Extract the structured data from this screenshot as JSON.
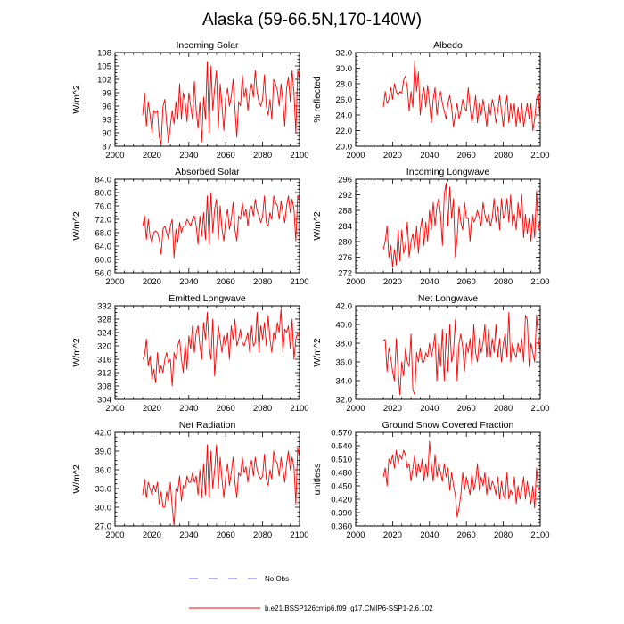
{
  "figure": {
    "title": "Alaska (59-66.5N,170-140W)",
    "line_color": "#ff0000",
    "obs_color": "#7b68ee"
  },
  "legend": {
    "obs_label": "No Obs",
    "model_label": "b.e21.BSSP126cmip6.f09_g17.CMIP6-SSP1-2.6.102"
  },
  "chart_data": [
    {
      "type": "line",
      "title": "Incoming Solar",
      "xlabel": "",
      "ylabel": "W/m^2",
      "xlim": [
        2000,
        2100
      ],
      "ylim": [
        87,
        108
      ],
      "xticks": [
        2000,
        2020,
        2040,
        2060,
        2080,
        2100
      ],
      "yticks": [
        87,
        90,
        93,
        96,
        99,
        102,
        105,
        108
      ],
      "ytick_labels": [
        "87",
        "90",
        "93",
        "96",
        "99",
        "102",
        "105",
        "108"
      ],
      "x_start": 2015,
      "series": [
        {
          "name": "b.e21.BSSP126cmip6.f09_g17.CMIP6-SSP1-2.6.102",
          "values": [
            94,
            99,
            91.5,
            97,
            94,
            90,
            95,
            94.5,
            95,
            89,
            87.5,
            96,
            97.5,
            92,
            87.8,
            91.5,
            95,
            92,
            97,
            93,
            101,
            93,
            99,
            97,
            92.5,
            99,
            96,
            93,
            101.5,
            95,
            91,
            97,
            88,
            98,
            93,
            106,
            90,
            105,
            95,
            100,
            104,
            91,
            101,
            96,
            90.5,
            98,
            100,
            96,
            98,
            102,
            95.5,
            89,
            97,
            96,
            103,
            98,
            100,
            95,
            99,
            101,
            98,
            104,
            99,
            97,
            96,
            97.5,
            103,
            96,
            94,
            97.5,
            93,
            102,
            101,
            99.5,
            96,
            101,
            97,
            91.5,
            100,
            102.5,
            97,
            104,
            99,
            90,
            104,
            102
          ]
        }
      ]
    },
    {
      "type": "line",
      "title": "Albedo",
      "xlabel": "",
      "ylabel": "% reflected",
      "xlim": [
        2000,
        2100
      ],
      "ylim": [
        20,
        32
      ],
      "xticks": [
        2000,
        2020,
        2040,
        2060,
        2080,
        2100
      ],
      "yticks": [
        20,
        22,
        24,
        26,
        28,
        30,
        32
      ],
      "ytick_labels": [
        "20.0",
        "22.0",
        "24.0",
        "26.0",
        "28.0",
        "30.0",
        "32.0"
      ],
      "x_start": 2015,
      "series": [
        {
          "name": "b.e21.BSSP126cmip6.f09_g17.CMIP6-SSP1-2.6.102",
          "values": [
            25,
            27,
            25.5,
            26,
            27.5,
            26,
            28,
            27,
            26.5,
            27,
            26.8,
            28.5,
            29,
            27.5,
            24.5,
            27,
            25,
            31,
            27,
            29.5,
            24,
            26.5,
            27.5,
            25,
            27.8,
            25.5,
            23,
            26,
            27.5,
            24,
            26,
            27,
            25.5,
            24.5,
            23.5,
            25.5,
            26.5,
            25,
            22.5,
            24,
            25.5,
            23.5,
            24.5,
            26,
            25,
            24.5,
            27.5,
            25,
            23,
            24.5,
            26.5,
            23,
            25.5,
            24,
            26,
            24.5,
            22.5,
            25.5,
            24,
            26,
            25,
            23,
            24.5,
            26.5,
            24.5,
            22.5,
            25,
            26.5,
            23,
            25.5,
            23.5,
            25.5,
            22.5,
            25,
            23,
            25.5,
            22.5,
            24,
            25.5,
            23.5,
            25.5,
            22,
            23.5,
            26,
            26.8,
            23
          ]
        }
      ]
    },
    {
      "type": "line",
      "title": "Absorbed Solar",
      "xlabel": "",
      "ylabel": "W/m^2",
      "xlim": [
        2000,
        2100
      ],
      "ylim": [
        56,
        84
      ],
      "xticks": [
        2000,
        2020,
        2040,
        2060,
        2080,
        2100
      ],
      "yticks": [
        56,
        60,
        64,
        68,
        72,
        76,
        80,
        84
      ],
      "ytick_labels": [
        "56.0",
        "60.0",
        "64.0",
        "68.0",
        "72.0",
        "76.0",
        "80.0",
        "84.0"
      ],
      "x_start": 2015,
      "series": [
        {
          "name": "b.e21.BSSP126cmip6.f09_g17.CMIP6-SSP1-2.6.102",
          "values": [
            70,
            73,
            66,
            72,
            67,
            65,
            68,
            68.5,
            68,
            66,
            61.5,
            69,
            70,
            68,
            66,
            70,
            72,
            60.5,
            69,
            65,
            71,
            68,
            70,
            70,
            72,
            71,
            70,
            72,
            73,
            70,
            64.5,
            73,
            67,
            74,
            66,
            79,
            64.5,
            80,
            68,
            75,
            78,
            66,
            76,
            69,
            65.5,
            72,
            75,
            69,
            72,
            77,
            69,
            65.5,
            73,
            72,
            77,
            73,
            75,
            70,
            75,
            76,
            73,
            78,
            74.5,
            73,
            71,
            73,
            79,
            71,
            70,
            74,
            72,
            79,
            77,
            76,
            72,
            77.5,
            74,
            71,
            76,
            79,
            74,
            78,
            75,
            65.5,
            79,
            78
          ]
        }
      ]
    },
    {
      "type": "line",
      "title": "Incoming Longwave",
      "xlabel": "",
      "ylabel": "W/m^2",
      "xlim": [
        2000,
        2100
      ],
      "ylim": [
        272,
        296
      ],
      "xticks": [
        2000,
        2020,
        2040,
        2060,
        2080,
        2100
      ],
      "yticks": [
        272,
        276,
        280,
        284,
        288,
        292,
        296
      ],
      "ytick_labels": [
        "272",
        "276",
        "280",
        "284",
        "288",
        "292",
        "296"
      ],
      "x_start": 2015,
      "series": [
        {
          "name": "b.e21.BSSP126cmip6.f09_g17.CMIP6-SSP1-2.6.102",
          "values": [
            278,
            280,
            284,
            276,
            279,
            273.5,
            278,
            274,
            283,
            275,
            283,
            277,
            279,
            285,
            276,
            280,
            282,
            278,
            284,
            277,
            283,
            286,
            279,
            285,
            280,
            288,
            283,
            290,
            284,
            289,
            291,
            287,
            279,
            292,
            295,
            284,
            294,
            286,
            291,
            276,
            281,
            289,
            285,
            283,
            290,
            286,
            286,
            280,
            287,
            285,
            286,
            288,
            286,
            284,
            290,
            287,
            285,
            287,
            284,
            286,
            291,
            285,
            289,
            283,
            291,
            286,
            287,
            291,
            285,
            292,
            284,
            287,
            283,
            290,
            286,
            292,
            281,
            287,
            282,
            286,
            280,
            287,
            281,
            293,
            283,
            286
          ]
        }
      ]
    },
    {
      "type": "line",
      "title": "Emitted Longwave",
      "xlabel": "",
      "ylabel": "W/m^2",
      "xlim": [
        2000,
        2100
      ],
      "ylim": [
        304,
        332
      ],
      "xticks": [
        2000,
        2020,
        2040,
        2060,
        2080,
        2100
      ],
      "yticks": [
        304,
        308,
        312,
        316,
        320,
        324,
        328,
        332
      ],
      "ytick_labels": [
        "304",
        "308",
        "312",
        "316",
        "320",
        "324",
        "328",
        "332"
      ],
      "x_start": 2015,
      "series": [
        {
          "name": "b.e21.BSSP126cmip6.f09_g17.CMIP6-SSP1-2.6.102",
          "values": [
            316,
            317,
            322,
            314,
            317,
            310,
            313,
            309,
            318,
            312,
            314,
            312,
            316,
            318,
            315,
            316,
            308,
            318,
            316,
            320,
            322,
            316,
            312,
            321,
            313,
            323,
            319,
            326,
            318,
            324,
            326,
            320,
            316,
            327,
            322,
            330,
            320,
            316,
            328,
            311,
            319,
            326,
            322,
            318,
            323,
            320,
            324,
            316,
            326,
            322,
            328,
            320,
            322,
            325,
            321,
            320,
            322,
            324,
            318,
            326,
            320,
            321,
            330,
            318,
            326,
            322,
            327,
            320,
            329,
            322,
            318,
            324,
            322,
            327,
            324,
            331,
            318,
            325,
            324,
            326,
            319,
            328,
            316,
            322,
            324,
            323
          ]
        }
      ]
    },
    {
      "type": "line",
      "title": "Net Longwave",
      "xlabel": "",
      "ylabel": "W/m^2",
      "xlim": [
        2000,
        2100
      ],
      "ylim": [
        32,
        42
      ],
      "xticks": [
        2000,
        2020,
        2040,
        2060,
        2080,
        2100
      ],
      "yticks": [
        32,
        34,
        36,
        38,
        40,
        42
      ],
      "ytick_labels": [
        "32.0",
        "34.0",
        "36.0",
        "38.0",
        "40.0",
        "42.0"
      ],
      "x_start": 2015,
      "series": [
        {
          "name": "b.e21.BSSP126cmip6.f09_g17.CMIP6-SSP1-2.6.102",
          "values": [
            38.3,
            38.4,
            35,
            37.5,
            36.5,
            35,
            34,
            38.5,
            35,
            32.5,
            36,
            34.5,
            37.5,
            36,
            35.5,
            39,
            33,
            32.5,
            37,
            36,
            37.5,
            36,
            36,
            37,
            36.5,
            38,
            36.5,
            37.5,
            39,
            34,
            38,
            35.5,
            39.5,
            34,
            39,
            35,
            40,
            36,
            37,
            40.5,
            34,
            38,
            39,
            37.5,
            35,
            38,
            37,
            38.5,
            35.5,
            40,
            37,
            36,
            38.5,
            37,
            38,
            40,
            36.5,
            39.5,
            36.5,
            38.5,
            37,
            40,
            36.5,
            38.5,
            36,
            38,
            39,
            36.5,
            41.3,
            36,
            38,
            37,
            36.5,
            38,
            37,
            38.5,
            36,
            41,
            40.5,
            35.5,
            38,
            37,
            36,
            41,
            38.5,
            37
          ]
        }
      ]
    },
    {
      "type": "line",
      "title": "Net Radiation",
      "xlabel": "",
      "ylabel": "W/m^2",
      "xlim": [
        2000,
        2100
      ],
      "ylim": [
        27,
        42
      ],
      "xticks": [
        2000,
        2020,
        2040,
        2060,
        2080,
        2100
      ],
      "yticks": [
        27,
        30,
        33,
        36,
        39,
        42
      ],
      "ytick_labels": [
        "27.0",
        "30.0",
        "33.0",
        "36.0",
        "39.0",
        "42.0"
      ],
      "x_start": 2015,
      "series": [
        {
          "name": "b.e21.BSSP126cmip6.f09_g17.CMIP6-SSP1-2.6.102",
          "values": [
            32,
            34.5,
            31.5,
            34,
            33,
            32,
            33.5,
            32.5,
            34,
            30.5,
            32.5,
            30,
            30,
            32.5,
            31,
            34,
            30,
            27,
            33,
            32.5,
            35,
            31,
            33.5,
            33,
            35,
            34,
            34,
            35.5,
            34,
            35,
            32,
            36,
            31.5,
            37,
            32,
            40,
            31.5,
            39,
            33,
            36,
            40,
            33,
            38,
            34.5,
            31.5,
            35,
            37,
            33.5,
            35.5,
            38,
            34,
            31.5,
            35.5,
            35,
            38,
            35.5,
            36.5,
            34,
            36.5,
            37.5,
            35,
            38,
            36,
            35,
            34.5,
            35,
            38.5,
            34.5,
            33.5,
            36,
            34.5,
            39,
            37.5,
            37,
            35,
            38,
            36,
            34,
            37,
            39,
            36,
            38,
            36.5,
            30.5,
            39.5,
            38
          ]
        }
      ]
    },
    {
      "type": "line",
      "title": "Ground Snow Covered Fraction",
      "xlabel": "",
      "ylabel": "unitless",
      "xlim": [
        2000,
        2100
      ],
      "ylim": [
        0.36,
        0.57
      ],
      "xticks": [
        2000,
        2020,
        2040,
        2060,
        2080,
        2100
      ],
      "yticks": [
        0.36,
        0.39,
        0.42,
        0.45,
        0.48,
        0.51,
        0.54,
        0.57
      ],
      "ytick_labels": [
        "0.360",
        "0.390",
        "0.420",
        "0.450",
        "0.480",
        "0.510",
        "0.540",
        "0.570"
      ],
      "x_start": 2015,
      "series": [
        {
          "name": "b.e21.BSSP126cmip6.f09_g17.CMIP6-SSP1-2.6.102",
          "values": [
            0.47,
            0.49,
            0.45,
            0.51,
            0.5,
            0.52,
            0.49,
            0.53,
            0.5,
            0.52,
            0.51,
            0.53,
            0.52,
            0.49,
            0.5,
            0.46,
            0.49,
            0.52,
            0.47,
            0.5,
            0.48,
            0.51,
            0.46,
            0.5,
            0.47,
            0.55,
            0.5,
            0.46,
            0.52,
            0.47,
            0.5,
            0.48,
            0.46,
            0.5,
            0.47,
            0.49,
            0.44,
            0.48,
            0.45,
            0.43,
            0.38,
            0.4,
            0.43,
            0.48,
            0.44,
            0.47,
            0.45,
            0.43,
            0.48,
            0.44,
            0.46,
            0.5,
            0.44,
            0.47,
            0.45,
            0.48,
            0.43,
            0.47,
            0.44,
            0.46,
            0.45,
            0.43,
            0.47,
            0.42,
            0.46,
            0.43,
            0.42,
            0.48,
            0.42,
            0.44,
            0.43,
            0.47,
            0.41,
            0.45,
            0.42,
            0.44,
            0.47,
            0.42,
            0.46,
            0.43,
            0.41,
            0.45,
            0.4,
            0.49,
            0.44,
            0.45
          ]
        }
      ]
    }
  ]
}
